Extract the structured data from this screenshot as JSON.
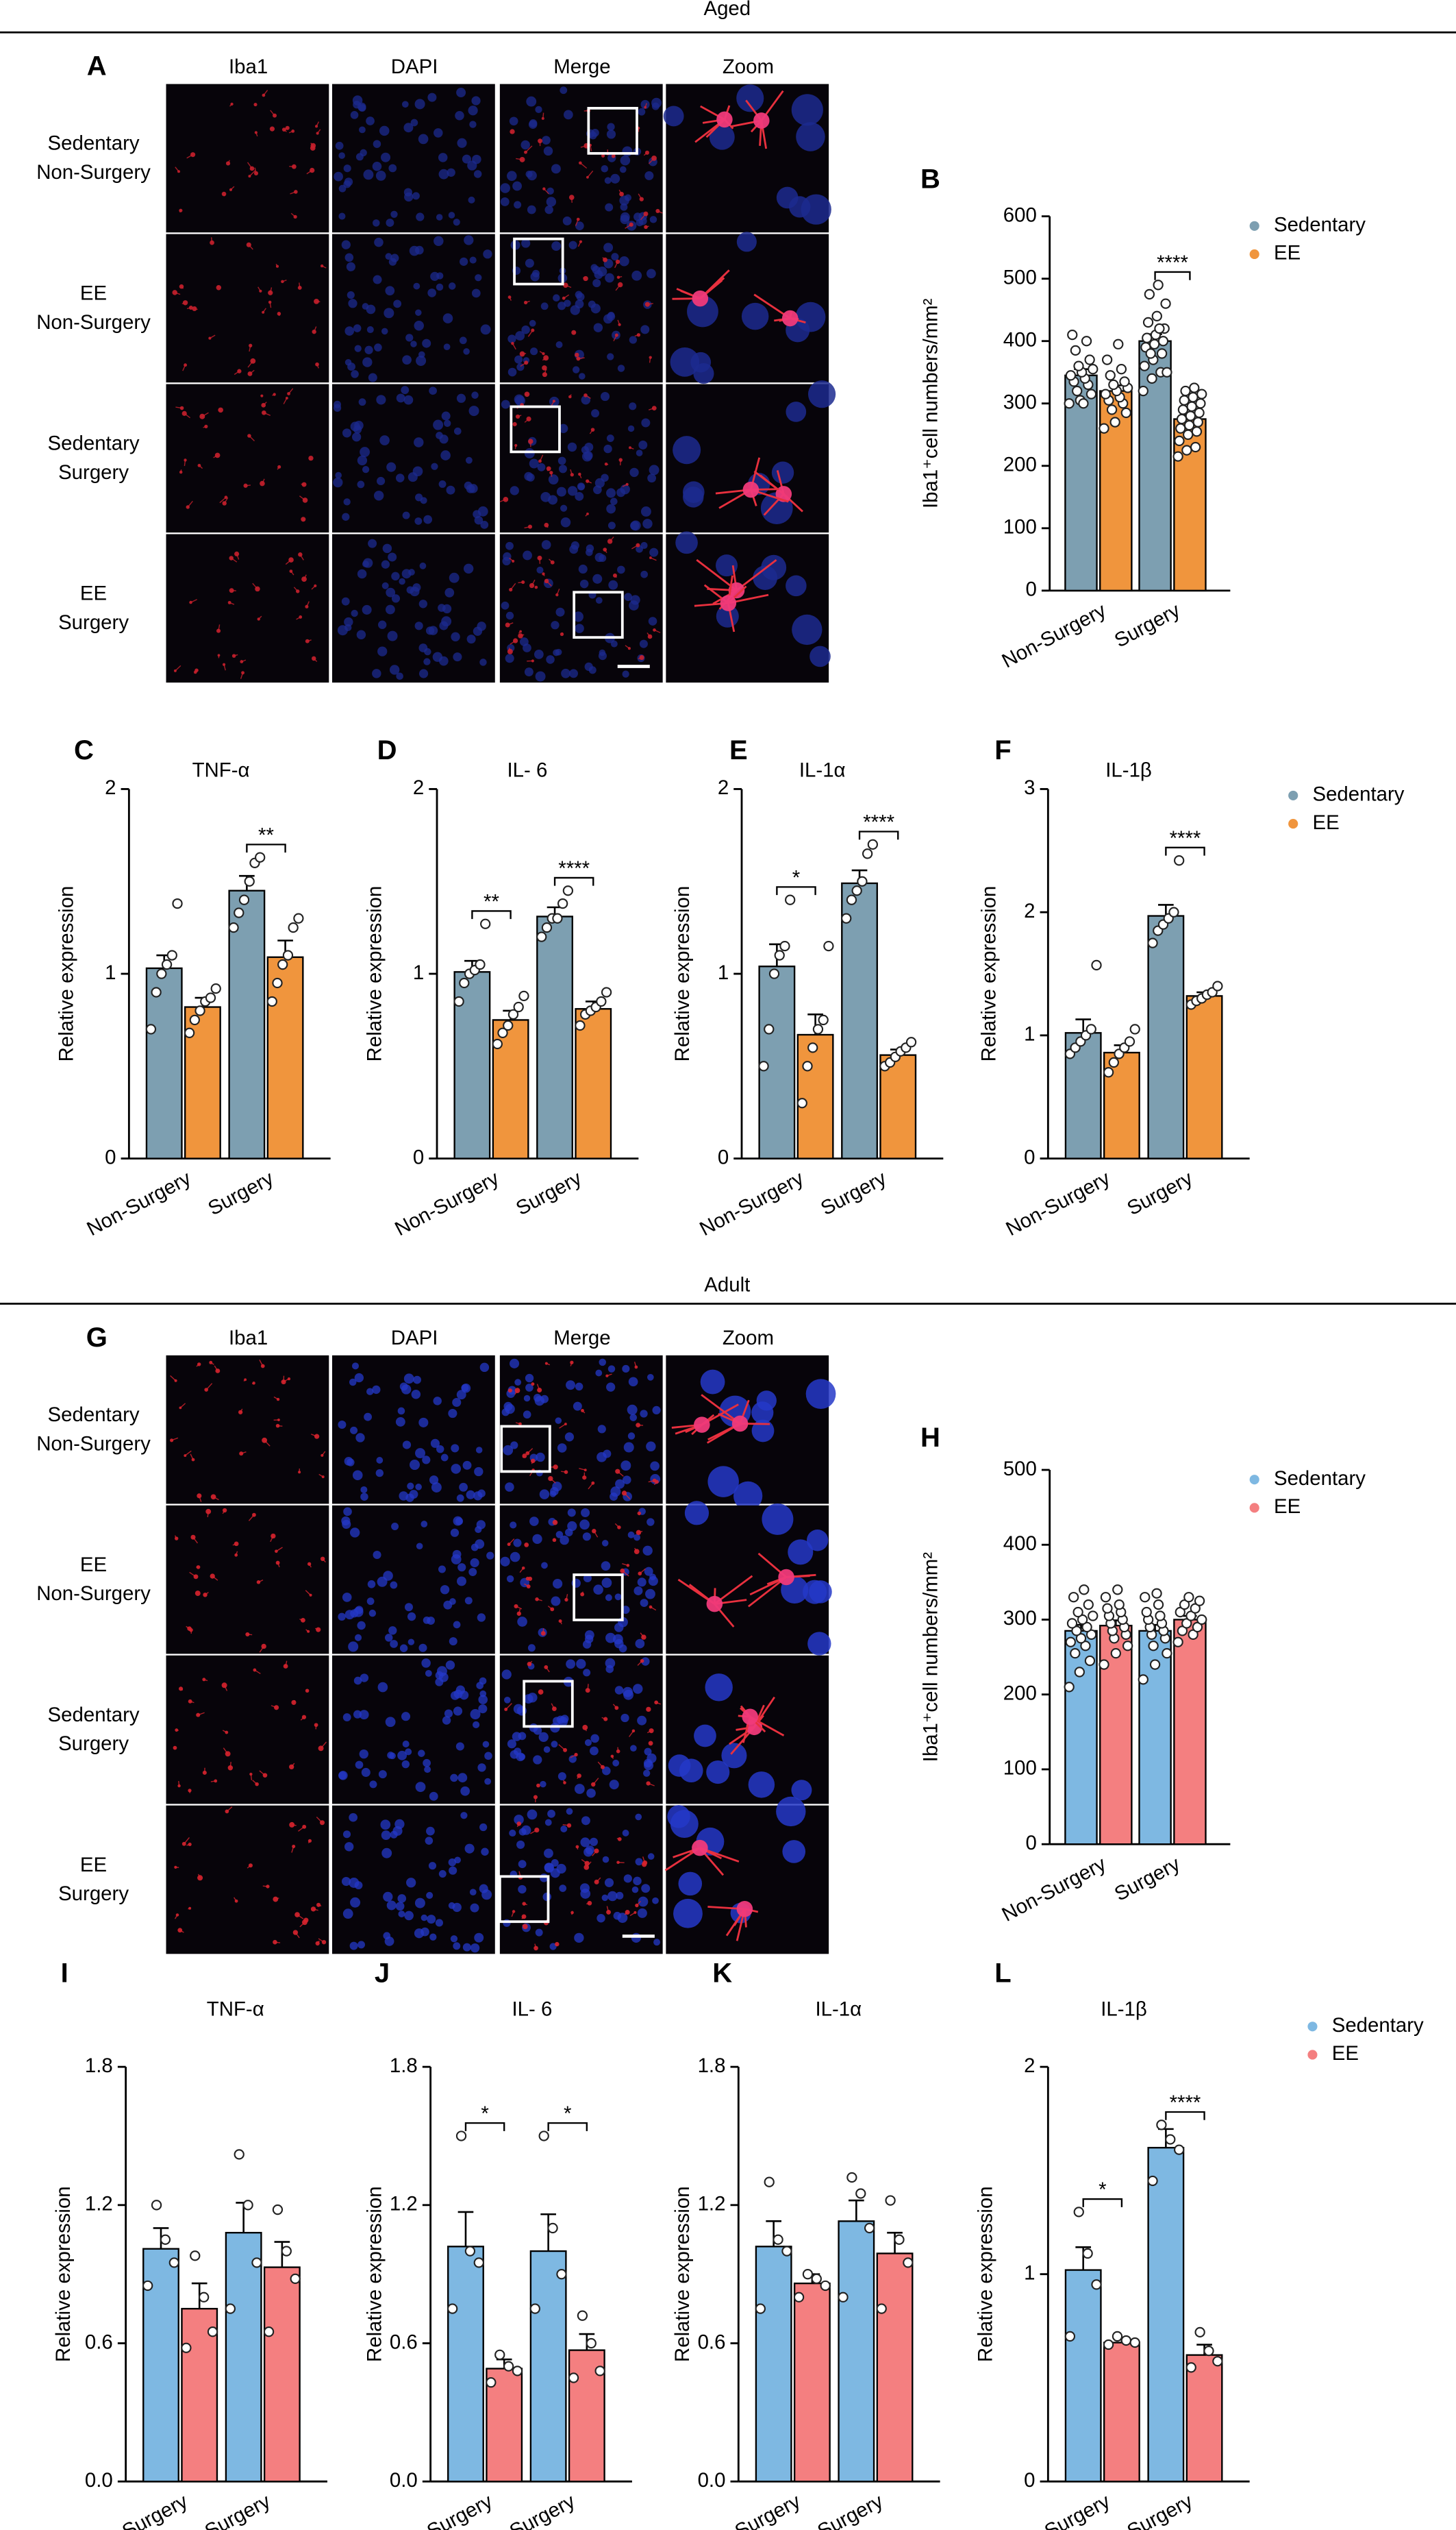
{
  "sections": [
    "Aged",
    "Adult"
  ],
  "image_panels": [
    {
      "letter": "A",
      "columns": [
        "Iba1",
        "DAPI",
        "Merge",
        "Zoom"
      ],
      "rows": [
        [
          "Sedentary",
          "Non-Surgery"
        ],
        [
          "EE",
          "Non-Surgery"
        ],
        [
          "Sedentary",
          "Surgery"
        ],
        [
          "EE",
          "Surgery"
        ]
      ]
    },
    {
      "letter": "G",
      "columns": [
        "Iba1",
        "DAPI",
        "Merge",
        "Zoom"
      ],
      "rows": [
        [
          "Sedentary",
          "Non-Surgery"
        ],
        [
          "EE",
          "Non-Surgery"
        ],
        [
          "Sedentary",
          "Surgery"
        ],
        [
          "EE",
          "Surgery"
        ]
      ]
    }
  ],
  "chart_data": [
    {
      "type": "bar",
      "letter": "B",
      "ylabel": "Iba1⁺cell numbers/mm²",
      "categories": [
        "Non-Surgery",
        "Surgery"
      ],
      "ylim": [
        0,
        600
      ],
      "yticks": [
        0,
        100,
        200,
        300,
        400,
        500,
        600
      ],
      "legend": "right",
      "significance": [
        null,
        "****"
      ],
      "series": [
        {
          "name": "Sedentary",
          "color": "#7d9fb1",
          "values": [
            345,
            400
          ],
          "errors": [
            10,
            11
          ],
          "points": [
            [
              300,
              305,
              315,
              320,
              330,
              335,
              340,
              345,
              350,
              355,
              360,
              370,
              385,
              400,
              410,
              300
            ],
            [
              320,
              340,
              350,
              360,
              370,
              380,
              390,
              395,
              400,
              405,
              410,
              420,
              430,
              440,
              460,
              475,
              490,
              350,
              380,
              420
            ]
          ]
        },
        {
          "name": "EE",
          "color": "#f0953d",
          "values": [
            320,
            275
          ],
          "errors": [
            9,
            7
          ],
          "points": [
            [
              260,
              270,
              285,
              290,
              300,
              305,
              310,
              315,
              320,
              325,
              330,
              335,
              345,
              355,
              370,
              395
            ],
            [
              215,
              225,
              230,
              240,
              250,
              255,
              260,
              265,
              270,
              275,
              280,
              285,
              290,
              295,
              300,
              305,
              310,
              315,
              320,
              325
            ]
          ]
        }
      ]
    },
    {
      "type": "bar",
      "letter": "C",
      "title": "TNF-α",
      "ylabel": "Relative expression",
      "categories": [
        "Non-Surgery",
        "Surgery"
      ],
      "ylim": [
        0,
        2
      ],
      "yticks": [
        0,
        1,
        2
      ],
      "significance": [
        null,
        "**"
      ],
      "series": [
        {
          "color": "#7d9fb1",
          "values": [
            1.03,
            1.45
          ],
          "errors": [
            0.07,
            0.08
          ],
          "points": [
            [
              0.7,
              0.9,
              1.0,
              1.05,
              1.1,
              1.38
            ],
            [
              1.25,
              1.33,
              1.4,
              1.5,
              1.6,
              1.63
            ]
          ]
        },
        {
          "color": "#f0953d",
          "values": [
            0.82,
            1.09
          ],
          "errors": [
            0.05,
            0.09
          ],
          "points": [
            [
              0.68,
              0.75,
              0.8,
              0.85,
              0.87,
              0.92
            ],
            [
              0.85,
              0.95,
              1.05,
              1.1,
              1.25,
              1.3
            ]
          ]
        }
      ]
    },
    {
      "type": "bar",
      "letter": "D",
      "title": "IL- 6",
      "ylabel": "Relative expression",
      "categories": [
        "Non-Surgery",
        "Surgery"
      ],
      "ylim": [
        0,
        2
      ],
      "yticks": [
        0,
        1,
        2
      ],
      "significance": [
        "**",
        "****"
      ],
      "series": [
        {
          "color": "#7d9fb1",
          "values": [
            1.01,
            1.31
          ],
          "errors": [
            0.06,
            0.05
          ],
          "points": [
            [
              0.85,
              0.95,
              1.0,
              1.02,
              1.05,
              1.27
            ],
            [
              1.2,
              1.25,
              1.3,
              1.3,
              1.38,
              1.45
            ]
          ]
        },
        {
          "color": "#f0953d",
          "values": [
            0.75,
            0.81
          ],
          "errors": [
            0.05,
            0.04
          ],
          "points": [
            [
              0.62,
              0.68,
              0.72,
              0.78,
              0.82,
              0.88
            ],
            [
              0.72,
              0.78,
              0.8,
              0.82,
              0.85,
              0.9
            ]
          ]
        }
      ]
    },
    {
      "type": "bar",
      "letter": "E",
      "title": "IL-1α",
      "ylabel": "Relative expression",
      "categories": [
        "Non-Surgery",
        "Surgery"
      ],
      "ylim": [
        0,
        2
      ],
      "yticks": [
        0,
        1,
        2
      ],
      "significance": [
        "*",
        "****"
      ],
      "series": [
        {
          "color": "#7d9fb1",
          "values": [
            1.04,
            1.49
          ],
          "errors": [
            0.12,
            0.07
          ],
          "points": [
            [
              0.5,
              0.7,
              1.0,
              1.1,
              1.15,
              1.4
            ],
            [
              1.3,
              1.4,
              1.45,
              1.5,
              1.65,
              1.7
            ]
          ]
        },
        {
          "color": "#f0953d",
          "values": [
            0.67,
            0.56
          ],
          "errors": [
            0.11,
            0.03
          ],
          "points": [
            [
              0.3,
              0.5,
              0.6,
              0.7,
              0.75,
              1.15
            ],
            [
              0.5,
              0.52,
              0.55,
              0.58,
              0.6,
              0.63
            ]
          ]
        }
      ]
    },
    {
      "type": "bar",
      "letter": "F",
      "title": "IL-1β",
      "ylabel": "Relative expression",
      "categories": [
        "Non-Surgery",
        "Surgery"
      ],
      "ylim": [
        0,
        3
      ],
      "yticks": [
        0,
        1,
        2,
        3
      ],
      "legend": "right",
      "significance": [
        null,
        "****"
      ],
      "series": [
        {
          "name": "Sedentary",
          "color": "#7d9fb1",
          "values": [
            1.02,
            1.97
          ],
          "errors": [
            0.11,
            0.09
          ],
          "points": [
            [
              0.85,
              0.9,
              0.95,
              1.0,
              1.05,
              1.57
            ],
            [
              1.75,
              1.85,
              1.9,
              1.95,
              2.0,
              2.42
            ]
          ]
        },
        {
          "name": "EE",
          "color": "#f0953d",
          "values": [
            0.86,
            1.32
          ],
          "errors": [
            0.06,
            0.03
          ],
          "points": [
            [
              0.7,
              0.78,
              0.85,
              0.9,
              0.95,
              1.05
            ],
            [
              1.25,
              1.28,
              1.3,
              1.33,
              1.35,
              1.4
            ]
          ]
        }
      ]
    },
    {
      "type": "bar",
      "letter": "H",
      "ylabel": "Iba1⁺cell numbers/mm²",
      "categories": [
        "Non-Surgery",
        "Surgery"
      ],
      "ylim": [
        0,
        500
      ],
      "yticks": [
        0,
        100,
        200,
        300,
        400,
        500
      ],
      "legend": "right",
      "significance": [
        null,
        null
      ],
      "series": [
        {
          "name": "Sedentary",
          "color": "#7eb8e2",
          "values": [
            285,
            285
          ],
          "errors": [
            8,
            8
          ],
          "points": [
            [
              210,
              230,
              245,
              255,
              265,
              270,
              275,
              280,
              285,
              290,
              295,
              300,
              305,
              310,
              320,
              330,
              340
            ],
            [
              220,
              240,
              255,
              265,
              275,
              280,
              285,
              290,
              295,
              300,
              305,
              310,
              320,
              330,
              335
            ]
          ]
        },
        {
          "name": "EE",
          "color": "#f47f80",
          "values": [
            292,
            300
          ],
          "errors": [
            7,
            5
          ],
          "points": [
            [
              240,
              255,
              265,
              275,
              280,
              285,
              290,
              295,
              300,
              305,
              310,
              315,
              320,
              330,
              340
            ],
            [
              270,
              280,
              285,
              290,
              295,
              300,
              305,
              310,
              315,
              320,
              325,
              330
            ]
          ]
        }
      ]
    },
    {
      "type": "bar",
      "letter": "I",
      "title": "TNF-α",
      "ylabel": "Relative expression",
      "categories": [
        "Non-Surgery",
        "Surgery"
      ],
      "ylim": [
        0,
        1.8
      ],
      "yticks": [
        {
          "value": 0,
          "label": "0.0"
        },
        0.6,
        1.2,
        1.8
      ],
      "significance": [
        null,
        null
      ],
      "series": [
        {
          "color": "#7eb8e2",
          "values": [
            1.01,
            1.08
          ],
          "errors": [
            0.09,
            0.13
          ],
          "points": [
            [
              0.85,
              0.95,
              1.05,
              1.2
            ],
            [
              0.75,
              0.95,
              1.2,
              1.42
            ]
          ]
        },
        {
          "color": "#f47f80",
          "values": [
            0.75,
            0.93
          ],
          "errors": [
            0.11,
            0.11
          ],
          "points": [
            [
              0.58,
              0.65,
              0.8,
              0.98
            ],
            [
              0.65,
              0.88,
              1.0,
              1.18
            ]
          ]
        }
      ]
    },
    {
      "type": "bar",
      "letter": "J",
      "title": "IL- 6",
      "ylabel": "Relative expression",
      "categories": [
        "Non-Surgery",
        "Surgery"
      ],
      "ylim": [
        0,
        1.8
      ],
      "yticks": [
        {
          "value": 0,
          "label": "0.0"
        },
        0.6,
        1.2,
        1.8
      ],
      "significance": [
        "*",
        "*"
      ],
      "series": [
        {
          "color": "#7eb8e2",
          "values": [
            1.02,
            1.0
          ],
          "errors": [
            0.15,
            0.16
          ],
          "points": [
            [
              0.75,
              0.95,
              1.0,
              1.5
            ],
            [
              0.75,
              0.9,
              1.1,
              1.5
            ]
          ]
        },
        {
          "color": "#f47f80",
          "values": [
            0.49,
            0.57
          ],
          "errors": [
            0.04,
            0.07
          ],
          "points": [
            [
              0.43,
              0.48,
              0.5,
              0.55
            ],
            [
              0.45,
              0.48,
              0.6,
              0.72
            ]
          ]
        }
      ]
    },
    {
      "type": "bar",
      "letter": "K",
      "title": "IL-1α",
      "ylabel": "Relative expression",
      "categories": [
        "Non-Surgery",
        "Surgery"
      ],
      "ylim": [
        0,
        1.8
      ],
      "yticks": [
        {
          "value": 0,
          "label": "0.0"
        },
        0.6,
        1.2,
        1.8
      ],
      "significance": [
        null,
        null
      ],
      "series": [
        {
          "color": "#7eb8e2",
          "values": [
            1.02,
            1.13
          ],
          "errors": [
            0.11,
            0.09
          ],
          "points": [
            [
              0.75,
              1.0,
              1.05,
              1.3
            ],
            [
              0.8,
              1.1,
              1.25,
              1.32
            ]
          ]
        },
        {
          "color": "#f47f80",
          "values": [
            0.86,
            0.99
          ],
          "errors": [
            0.04,
            0.09
          ],
          "points": [
            [
              0.8,
              0.85,
              0.88,
              0.9
            ],
            [
              0.75,
              0.95,
              1.05,
              1.22
            ]
          ]
        }
      ]
    },
    {
      "type": "bar",
      "letter": "L",
      "title": "IL-1β",
      "ylabel": "Relative expression",
      "categories": [
        "Non-Surgery",
        "Surgery"
      ],
      "ylim": [
        0,
        2
      ],
      "yticks": [
        0,
        1,
        2
      ],
      "legend": "right",
      "significance": [
        "*",
        "****"
      ],
      "series": [
        {
          "name": "Sedentary",
          "color": "#7eb8e2",
          "values": [
            1.02,
            1.61
          ],
          "errors": [
            0.11,
            0.09
          ],
          "points": [
            [
              0.7,
              0.95,
              1.1,
              1.3
            ],
            [
              1.45,
              1.6,
              1.65,
              1.72
            ]
          ]
        },
        {
          "name": "EE",
          "color": "#f47f80",
          "values": [
            0.67,
            0.61
          ],
          "errors": [
            0.02,
            0.05
          ],
          "points": [
            [
              0.66,
              0.67,
              0.68,
              0.7
            ],
            [
              0.55,
              0.58,
              0.63,
              0.72
            ]
          ]
        }
      ]
    }
  ]
}
